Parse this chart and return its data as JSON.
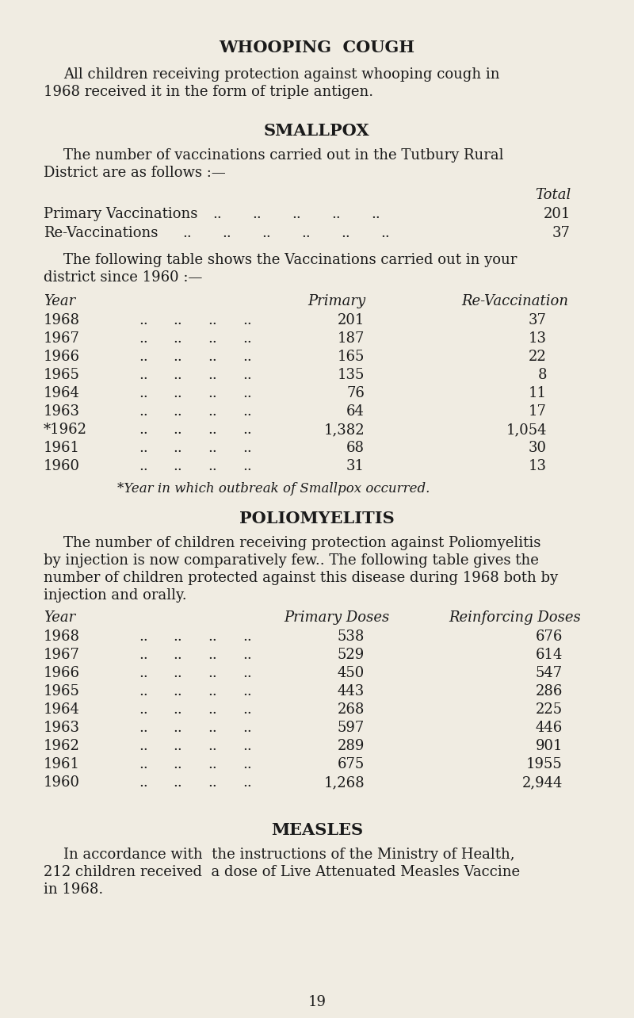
{
  "bg_color": "#f0ece2",
  "text_color": "#1a1a1a",
  "page_number": "19",
  "whooping_cough": {
    "title": "WHOOPING  COUGH",
    "line1": "All children receiving protection against whooping cough in",
    "line2": "1968 received it in the form of triple antigen."
  },
  "smallpox": {
    "title": "SMALLPOX",
    "para1_line1": "The number of vaccinations carried out in the Tutbury Rural",
    "para1_line2": "District are as follows :—",
    "total_label": "Total",
    "primary_label": "Primary Vaccinations",
    "primary_value": "201",
    "revac_label": "Re-Vaccinations",
    "revac_value": "37",
    "para2_line1": "The following table shows the Vaccinations carried out in your",
    "para2_line2": "district since 1960 :—",
    "table_col1": "Year",
    "table_col2": "Primary",
    "table_col3": "Re-Vaccination",
    "table_rows": [
      [
        "1968",
        "201",
        "37"
      ],
      [
        "1967",
        "187",
        "13"
      ],
      [
        "1966",
        "165",
        "22"
      ],
      [
        "1965",
        "135",
        "8"
      ],
      [
        "1964",
        "76",
        "11"
      ],
      [
        "1963",
        "64",
        "17"
      ],
      [
        "*1962",
        "1,382",
        "1,054"
      ],
      [
        "1961",
        "68",
        "30"
      ],
      [
        "1960",
        "31",
        "13"
      ]
    ],
    "footnote": "*Year in which outbreak of Smallpox occurred."
  },
  "polio": {
    "title": "POLIOMYELITIS",
    "para_line1": "The number of children receiving protection against Poliomyelitis",
    "para_line2": "by injection is now comparatively few.. The following table gives the",
    "para_line3": "number of children protected against this disease during 1968 both by",
    "para_line4": "injection and orally.",
    "table_col1": "Year",
    "table_col2": "Primary Doses",
    "table_col3": "Reinforcing Doses",
    "table_rows": [
      [
        "1968",
        "538",
        "676"
      ],
      [
        "1967",
        "529",
        "614"
      ],
      [
        "1966",
        "450",
        "547"
      ],
      [
        "1965",
        "443",
        "286"
      ],
      [
        "1964",
        "268",
        "225"
      ],
      [
        "1963",
        "597",
        "446"
      ],
      [
        "1962",
        "289",
        "901"
      ],
      [
        "1961",
        "675",
        "1955"
      ],
      [
        "1960",
        "1,268",
        "2,944"
      ]
    ]
  },
  "measles": {
    "title": "MEASLES",
    "line1": "In accordance with  the instructions of the Ministry of Health,",
    "line2": "212 children received  a dose of Live Attenuated Measles Vaccine",
    "line3": "in 1968."
  },
  "dots": "..  ..  ..  .."
}
